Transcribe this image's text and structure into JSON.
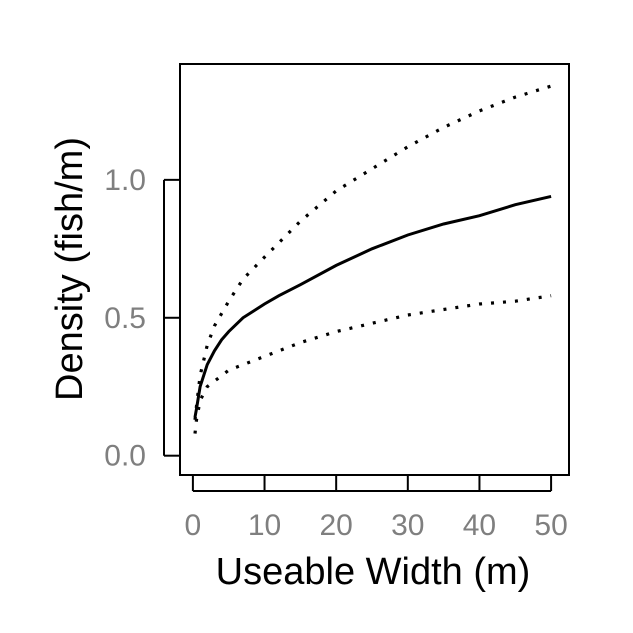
{
  "chart_data": {
    "type": "line",
    "title": "",
    "xlabel": "Useable Width (m)",
    "ylabel": "Density (fish/m)",
    "xlim": [
      -1.8,
      52.5
    ],
    "ylim": [
      -0.07,
      1.42
    ],
    "x_ticks": [
      0,
      10,
      20,
      30,
      40,
      50
    ],
    "y_ticks": [
      0.0,
      0.5,
      1.0
    ],
    "x_tick_labels": [
      "0",
      "10",
      "20",
      "30",
      "40",
      "50"
    ],
    "y_tick_labels": [
      "0.0",
      "0.5",
      "1.0"
    ],
    "grid": false,
    "legend": "none",
    "colors": {
      "line": "#000000",
      "tick_text": "#7f7f7f",
      "axis_title": "#000000"
    },
    "series": [
      {
        "style": "solid",
        "x": [
          0.3,
          0.5,
          1,
          2,
          3,
          4,
          5,
          7,
          10,
          12,
          15,
          20,
          25,
          30,
          35,
          40,
          45,
          50
        ],
        "y": [
          0.14,
          0.17,
          0.25,
          0.33,
          0.38,
          0.42,
          0.45,
          0.5,
          0.55,
          0.58,
          0.62,
          0.69,
          0.75,
          0.8,
          0.84,
          0.87,
          0.91,
          0.94
        ]
      },
      {
        "style": "dotted",
        "x": [
          0.3,
          0.5,
          1,
          2,
          3,
          5,
          7,
          10,
          15,
          20,
          25,
          30,
          35,
          40,
          45,
          50
        ],
        "y": [
          0.13,
          0.18,
          0.29,
          0.4,
          0.47,
          0.56,
          0.64,
          0.72,
          0.85,
          0.96,
          1.04,
          1.12,
          1.19,
          1.25,
          1.3,
          1.34
        ]
      },
      {
        "style": "dotted",
        "x": [
          0.3,
          0.5,
          1,
          2,
          3,
          5,
          7,
          10,
          15,
          20,
          25,
          30,
          35,
          40,
          45,
          50
        ],
        "y": [
          0.08,
          0.13,
          0.2,
          0.25,
          0.27,
          0.31,
          0.33,
          0.36,
          0.41,
          0.45,
          0.48,
          0.51,
          0.53,
          0.55,
          0.56,
          0.58
        ]
      }
    ]
  }
}
